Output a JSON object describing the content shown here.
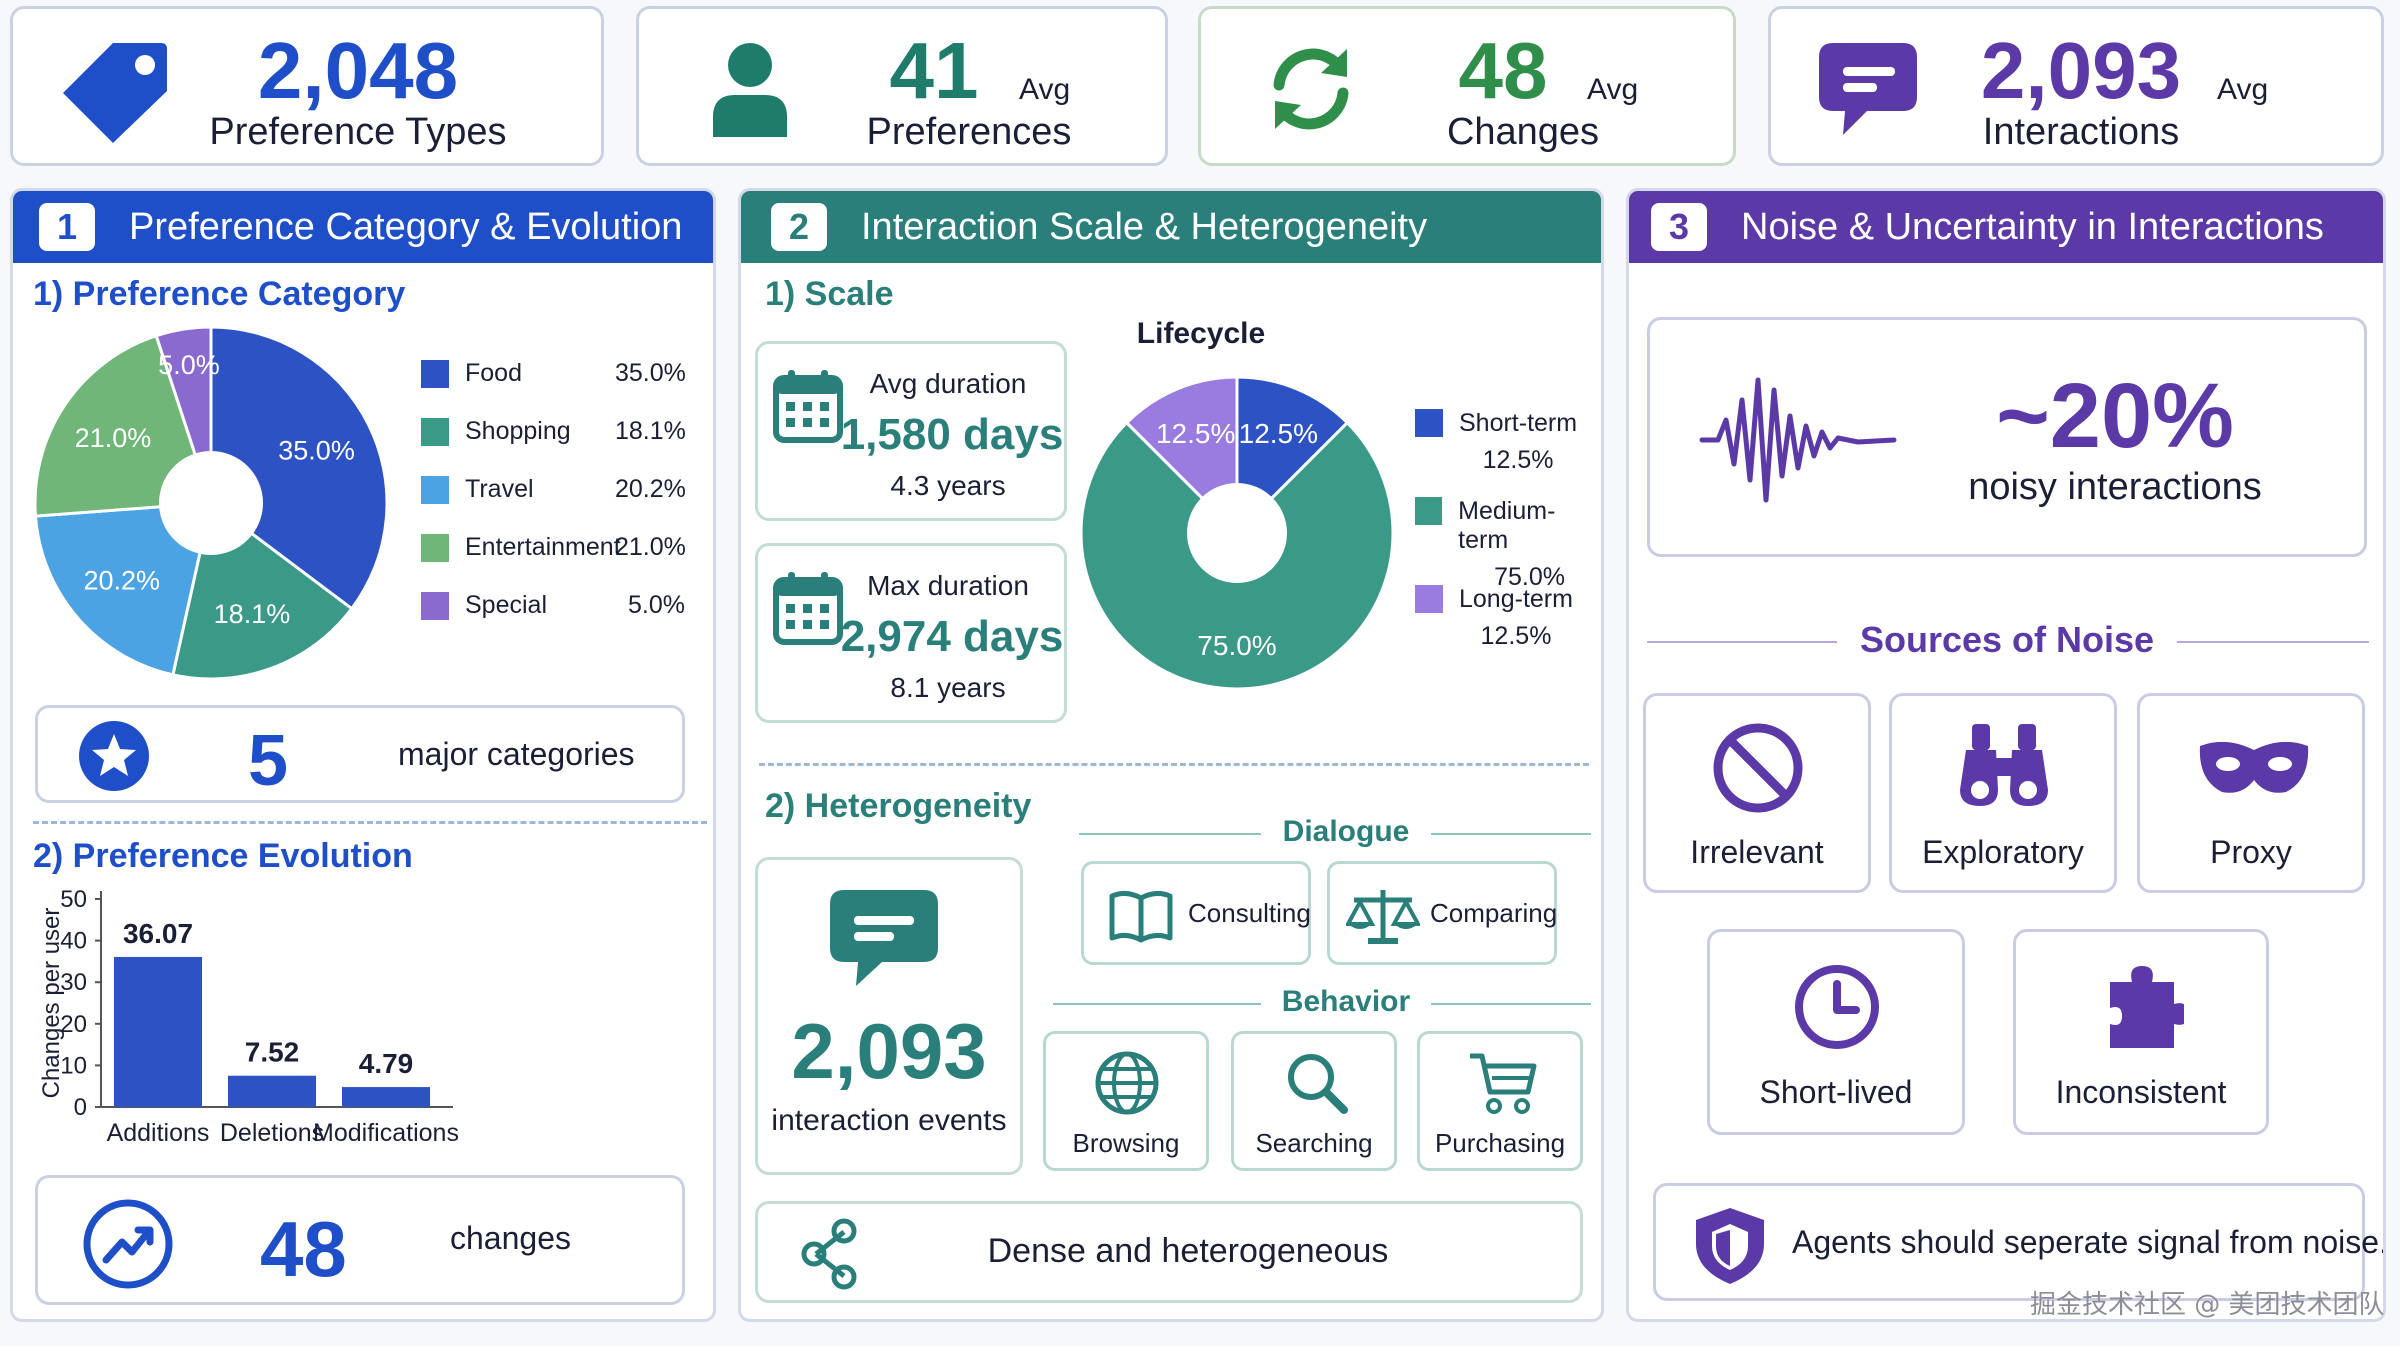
{
  "stats": [
    {
      "value": "2,048",
      "label": "Preference Types",
      "avg": "",
      "icon": "tag-icon",
      "color": "#1f4fc8"
    },
    {
      "value": "41",
      "label": "Preferences",
      "avg": "Avg",
      "icon": "user-icon",
      "color": "#1f7c6b"
    },
    {
      "value": "48",
      "label": "Changes",
      "avg": "Avg",
      "icon": "refresh-icon",
      "color": "#2f8f4a"
    },
    {
      "value": "2,093",
      "label": "Interactions",
      "avg": "Avg",
      "icon": "chat-icon",
      "color": "#5b3aa8"
    }
  ],
  "panel1": {
    "number": "1",
    "title": "Preference Category & Evolution",
    "color": "#1f4fc8",
    "sub1": "1)  Preference Category",
    "sub2": "2)  Preference Evolution",
    "major_value": "5",
    "major_label": "major categories",
    "changes_value": "48",
    "changes_label": "changes"
  },
  "panel2": {
    "number": "2",
    "title": "Interaction Scale & Heterogeneity",
    "color": "#2a7f7a",
    "sub1": "1)  Scale",
    "sub2": "2)  Heterogeneity",
    "avg_label": "Avg duration",
    "avg_value": "1,580 days",
    "avg_years": "4.3 years",
    "max_label": "Max duration",
    "max_value": "2,974 days",
    "max_years": "8.1 years",
    "events_value": "2,093",
    "events_label": "interaction events",
    "dialogue_label": "Dialogue",
    "behavior_label": "Behavior",
    "dialogue_items": [
      "Consulting",
      "Comparing"
    ],
    "behavior_items": [
      "Browsing",
      "Searching",
      "Purchasing"
    ],
    "dense_label": "Dense and heterogeneous"
  },
  "panel3": {
    "number": "3",
    "title": "Noise & Uncertainty in Interactions",
    "color": "#5b3aa8",
    "noise_value": "~20%",
    "noise_label": "noisy interactions",
    "sources_title": "Sources of Noise",
    "sources": [
      "Irrelevant",
      "Exploratory",
      "Proxy",
      "Short-lived",
      "Inconsistent"
    ],
    "advice": "Agents should seperate signal from noise."
  },
  "watermark": "掘金技术社区 @ 美团技术团队",
  "chart_data": [
    {
      "type": "pie",
      "title": "",
      "labels": [
        "Food",
        "Shopping",
        "Travel",
        "Entertainment",
        "Special"
      ],
      "values": [
        35.0,
        18.1,
        20.2,
        21.0,
        5.0
      ],
      "display": [
        "35.0%",
        "18.1%",
        "20.2%",
        "21.0%",
        "5.0%"
      ],
      "colors": [
        "#2d52c4",
        "#3b9987",
        "#4ba3e4",
        "#6fb678",
        "#8b6ad0"
      ]
    },
    {
      "type": "bar",
      "title": "",
      "categories": [
        "Additions",
        "Deletions",
        "Modifications"
      ],
      "values": [
        36.07,
        7.52,
        4.79
      ],
      "ylabel": "Changes per user",
      "ylim": [
        0,
        50
      ],
      "yticks": [
        "0",
        "10",
        "20",
        "30",
        "40",
        "50"
      ],
      "color": "#2d52c4"
    },
    {
      "type": "pie",
      "title": "Lifecycle",
      "labels": [
        "Short-term",
        "Medium-term",
        "Long-term"
      ],
      "values": [
        12.5,
        75.0,
        12.5
      ],
      "display": [
        "12.5%",
        "75.0%",
        "12.5%"
      ],
      "colors": [
        "#2d52c4",
        "#3b9987",
        "#9a7ce0"
      ]
    }
  ]
}
